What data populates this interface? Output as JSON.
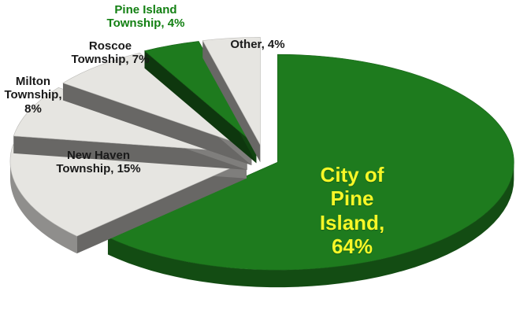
{
  "chart_data": {
    "type": "pie",
    "style": "3d-exploded",
    "slices": [
      {
        "label": "City of Pine Island",
        "value": 64,
        "label_lines": [
          "City of",
          "Pine",
          "Island,",
          "64%"
        ],
        "color": "#1e7b1e",
        "label_color": "#f7f727"
      },
      {
        "label": "New Haven Township",
        "value": 15,
        "label_lines": [
          "New Haven",
          "Township, 15%"
        ],
        "color": "#e6e5e1",
        "label_color": "#1a1a1a"
      },
      {
        "label": "Milton Township",
        "value": 8,
        "label_lines": [
          "Milton",
          "Township,",
          "8%"
        ],
        "color": "#e6e5e1",
        "label_color": "#1a1a1a"
      },
      {
        "label": "Roscoe Township",
        "value": 7,
        "label_lines": [
          "Roscoe",
          "Township, 7%"
        ],
        "color": "#e6e5e1",
        "label_color": "#1a1a1a"
      },
      {
        "label": "Pine Island Township",
        "value": 4,
        "label_lines": [
          "Pine Island",
          "Township, 4%"
        ],
        "color": "#1e7b1e",
        "label_color": "#138013"
      },
      {
        "label": "Other",
        "value": 4,
        "label_lines": [
          "Other, 4%"
        ],
        "color": "#e6e5e1",
        "label_color": "#1a1a1a"
      }
    ]
  }
}
